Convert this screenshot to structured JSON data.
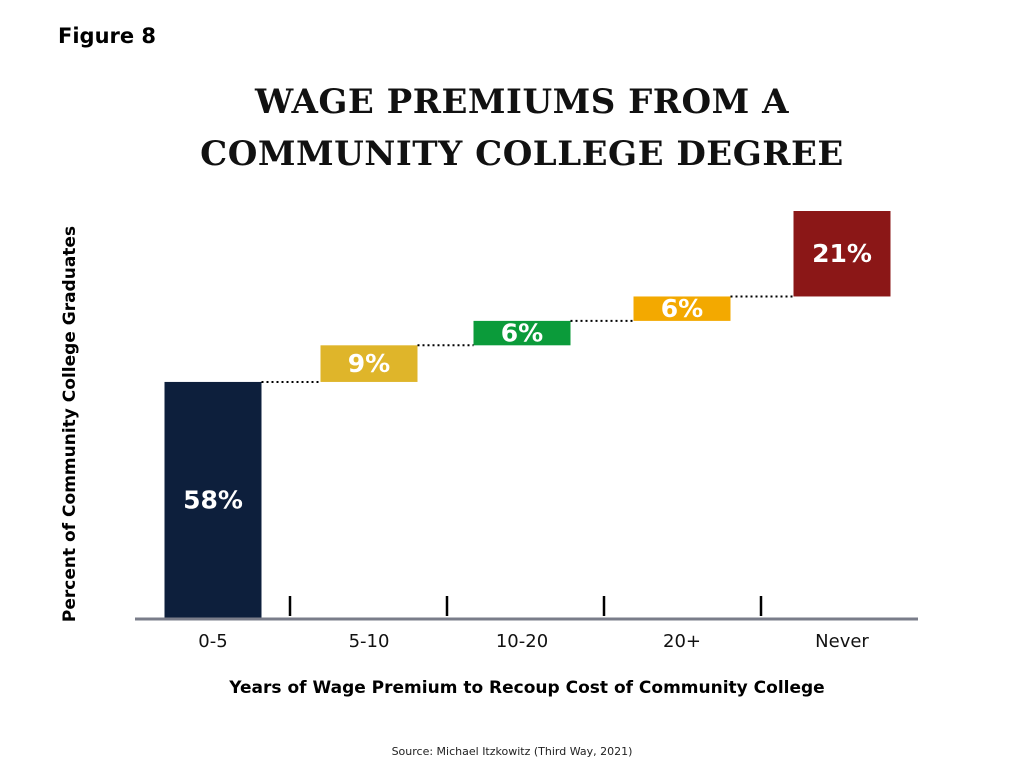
{
  "figure_label": "Figure 8",
  "title_lines": [
    "WAGE PREMIUMS FROM A",
    "COMMUNITY COLLEGE DEGREE"
  ],
  "source": "Source: Michael Itzkowitz (Third Way, 2021)",
  "colors": {
    "bar_0": "#0d1f3c",
    "bar_1": "#dfb52a",
    "bar_2": "#0b9b3a",
    "bar_3": "#f3a900",
    "bar_4": "#8b1717",
    "axis": "#7a7d8a",
    "connector": "#000000"
  },
  "chart_data": {
    "type": "bar",
    "subtype": "waterfall",
    "title": "WAGE PREMIUMS FROM A COMMUNITY COLLEGE DEGREE",
    "xlabel": "Years of Wage Premium to Recoup Cost of Community College",
    "ylabel": "Percent of Community College Graduates",
    "categories": [
      "0-5",
      "5-10",
      "10-20",
      "20+",
      "Never"
    ],
    "values": [
      58,
      9,
      6,
      6,
      21
    ],
    "data_labels": [
      "58%",
      "9%",
      "6%",
      "6%",
      "21%"
    ],
    "ylim": [
      0,
      100
    ],
    "grid": false,
    "legend": "none"
  }
}
